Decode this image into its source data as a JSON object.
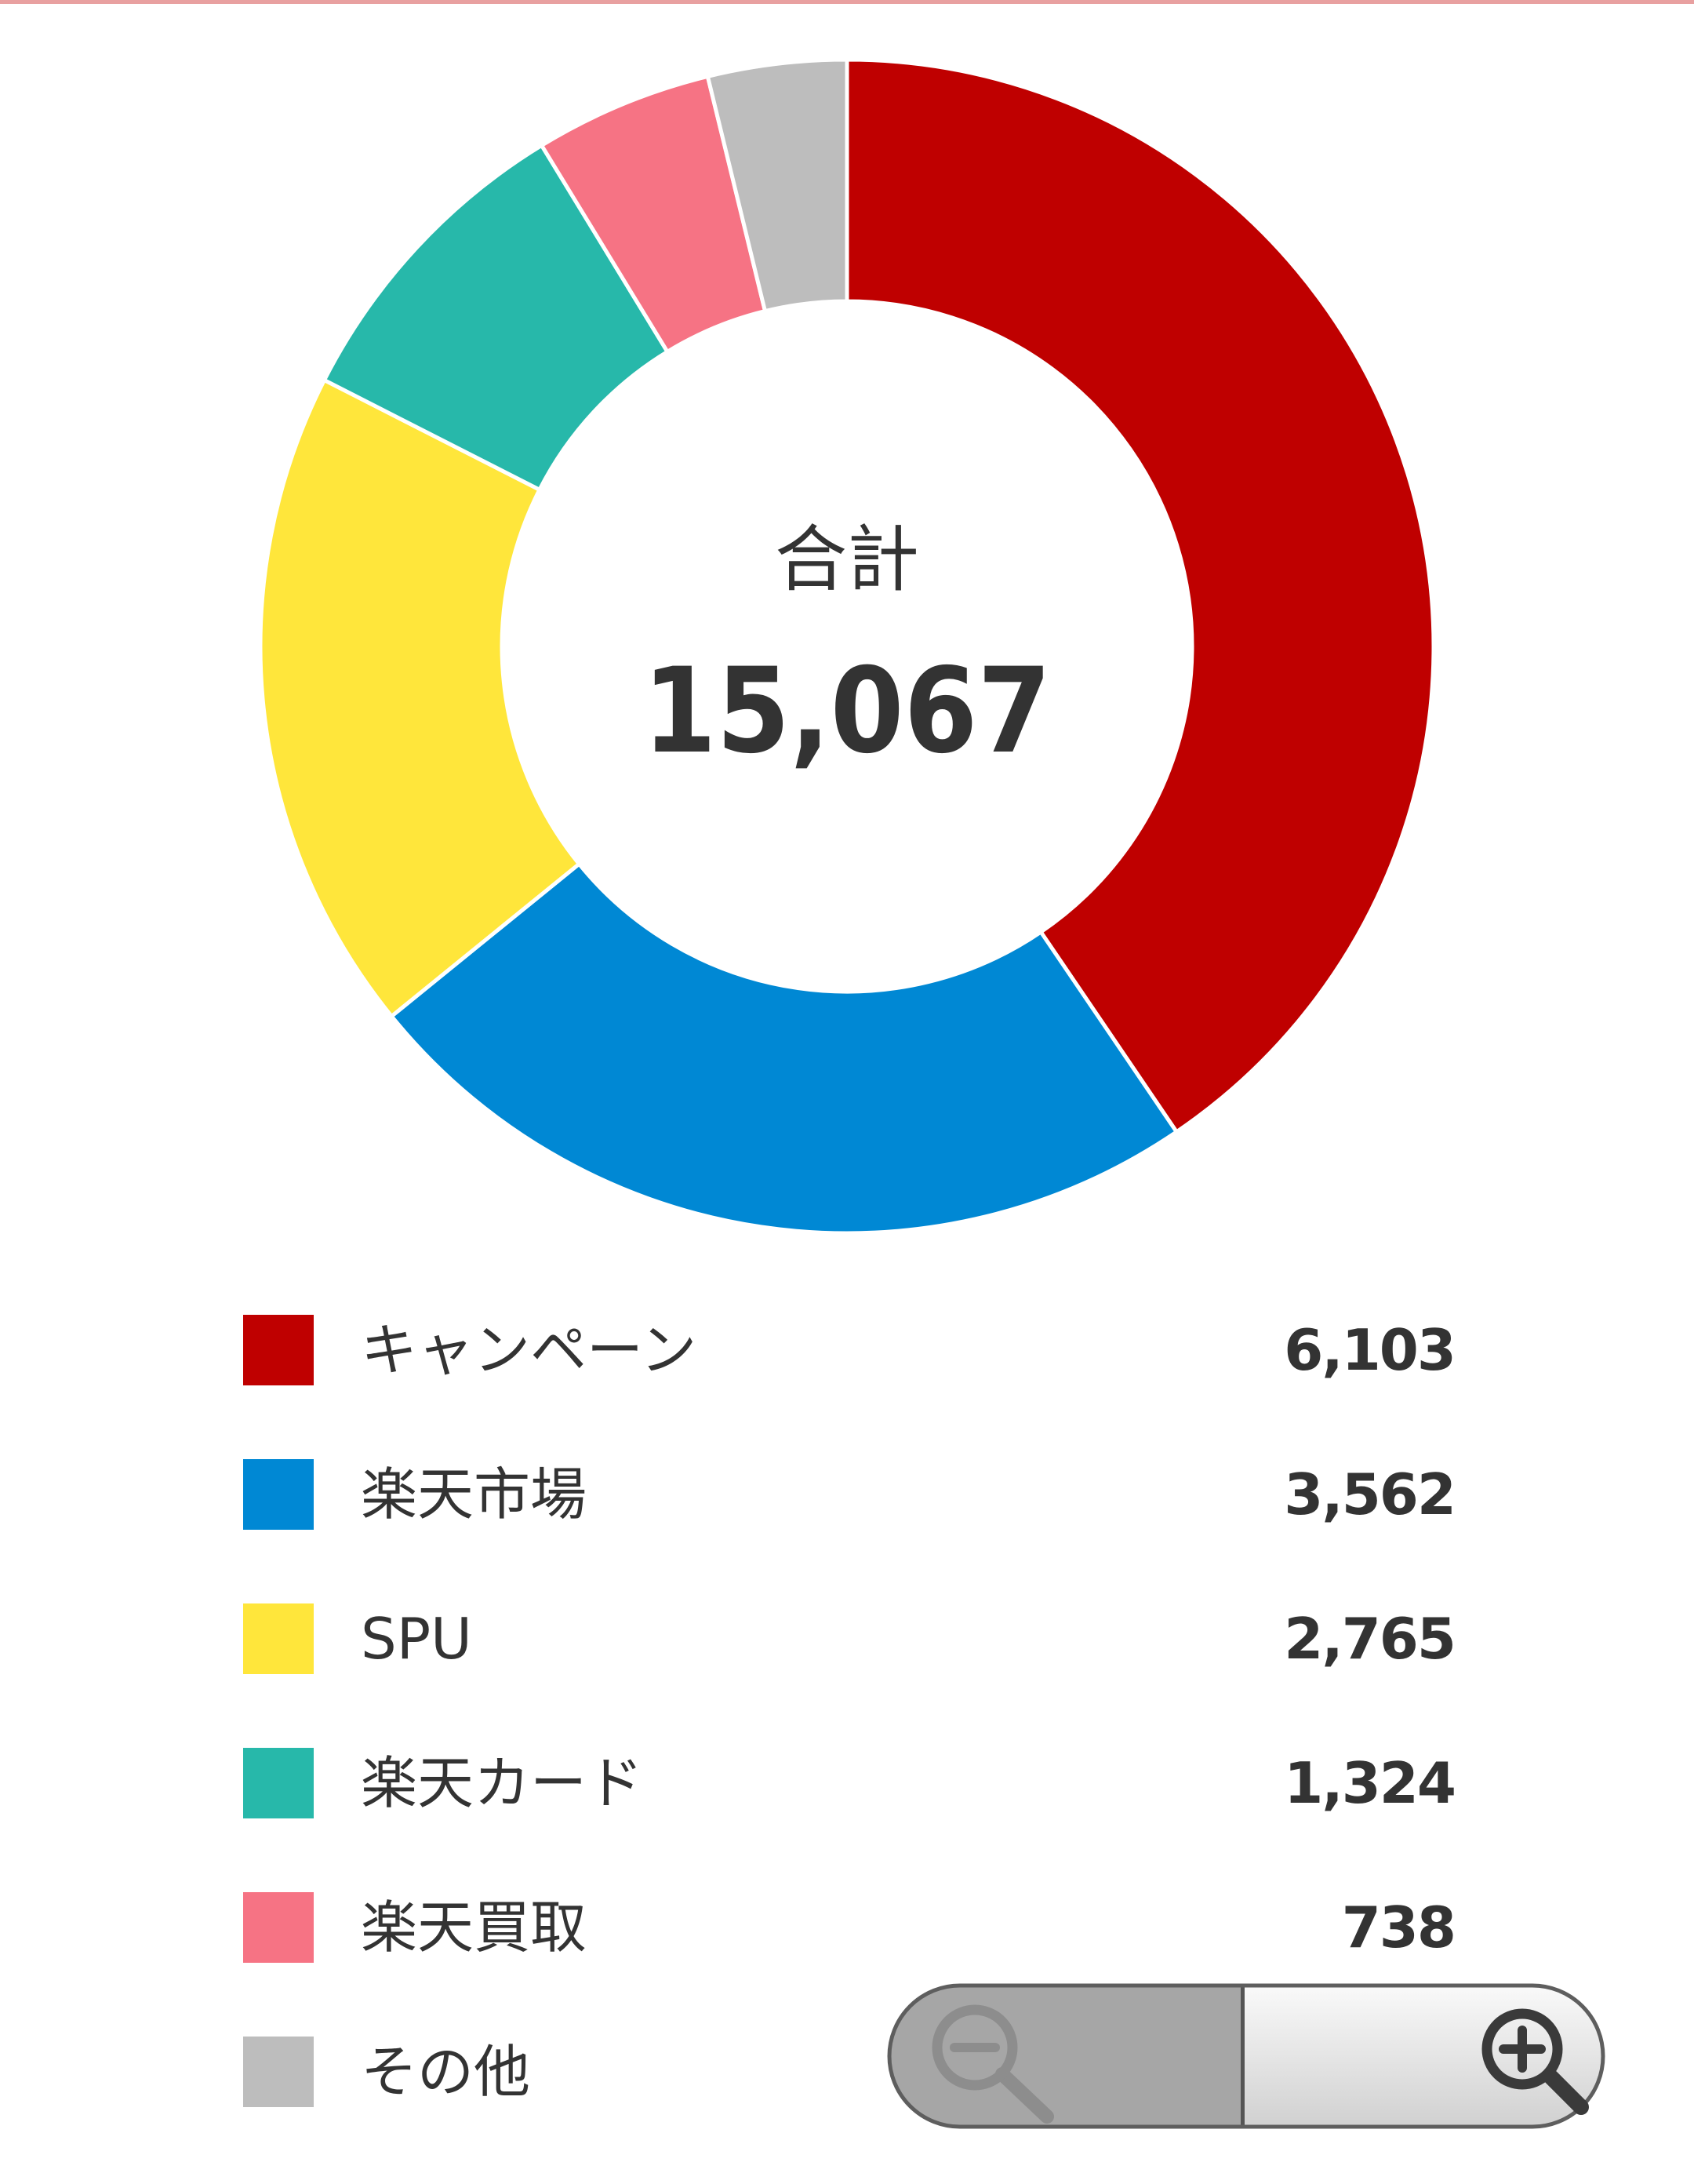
{
  "chart_data": {
    "type": "pie",
    "center_label": "合計",
    "center_value": "15,067",
    "series": [
      {
        "label": "キャンペーン",
        "value": 6103,
        "display": "6,103",
        "color": "#BF0000"
      },
      {
        "label": "楽天市場",
        "value": 3562,
        "display": "3,562",
        "color": "#0088D4"
      },
      {
        "label": "SPU",
        "value": 2765,
        "display": "2,765",
        "color": "#FFE63B"
      },
      {
        "label": "楽天カード",
        "value": 1324,
        "display": "1,324",
        "color": "#27B8AA"
      },
      {
        "label": "楽天買取",
        "value": 738,
        "display": "738",
        "color": "#F67384"
      },
      {
        "label": "その他",
        "value": 575,
        "display": "",
        "color": "#BDBDBD"
      }
    ]
  },
  "zoom": {
    "zoom_out_icon": "zoom-out-icon",
    "zoom_in_icon": "zoom-in-icon"
  }
}
